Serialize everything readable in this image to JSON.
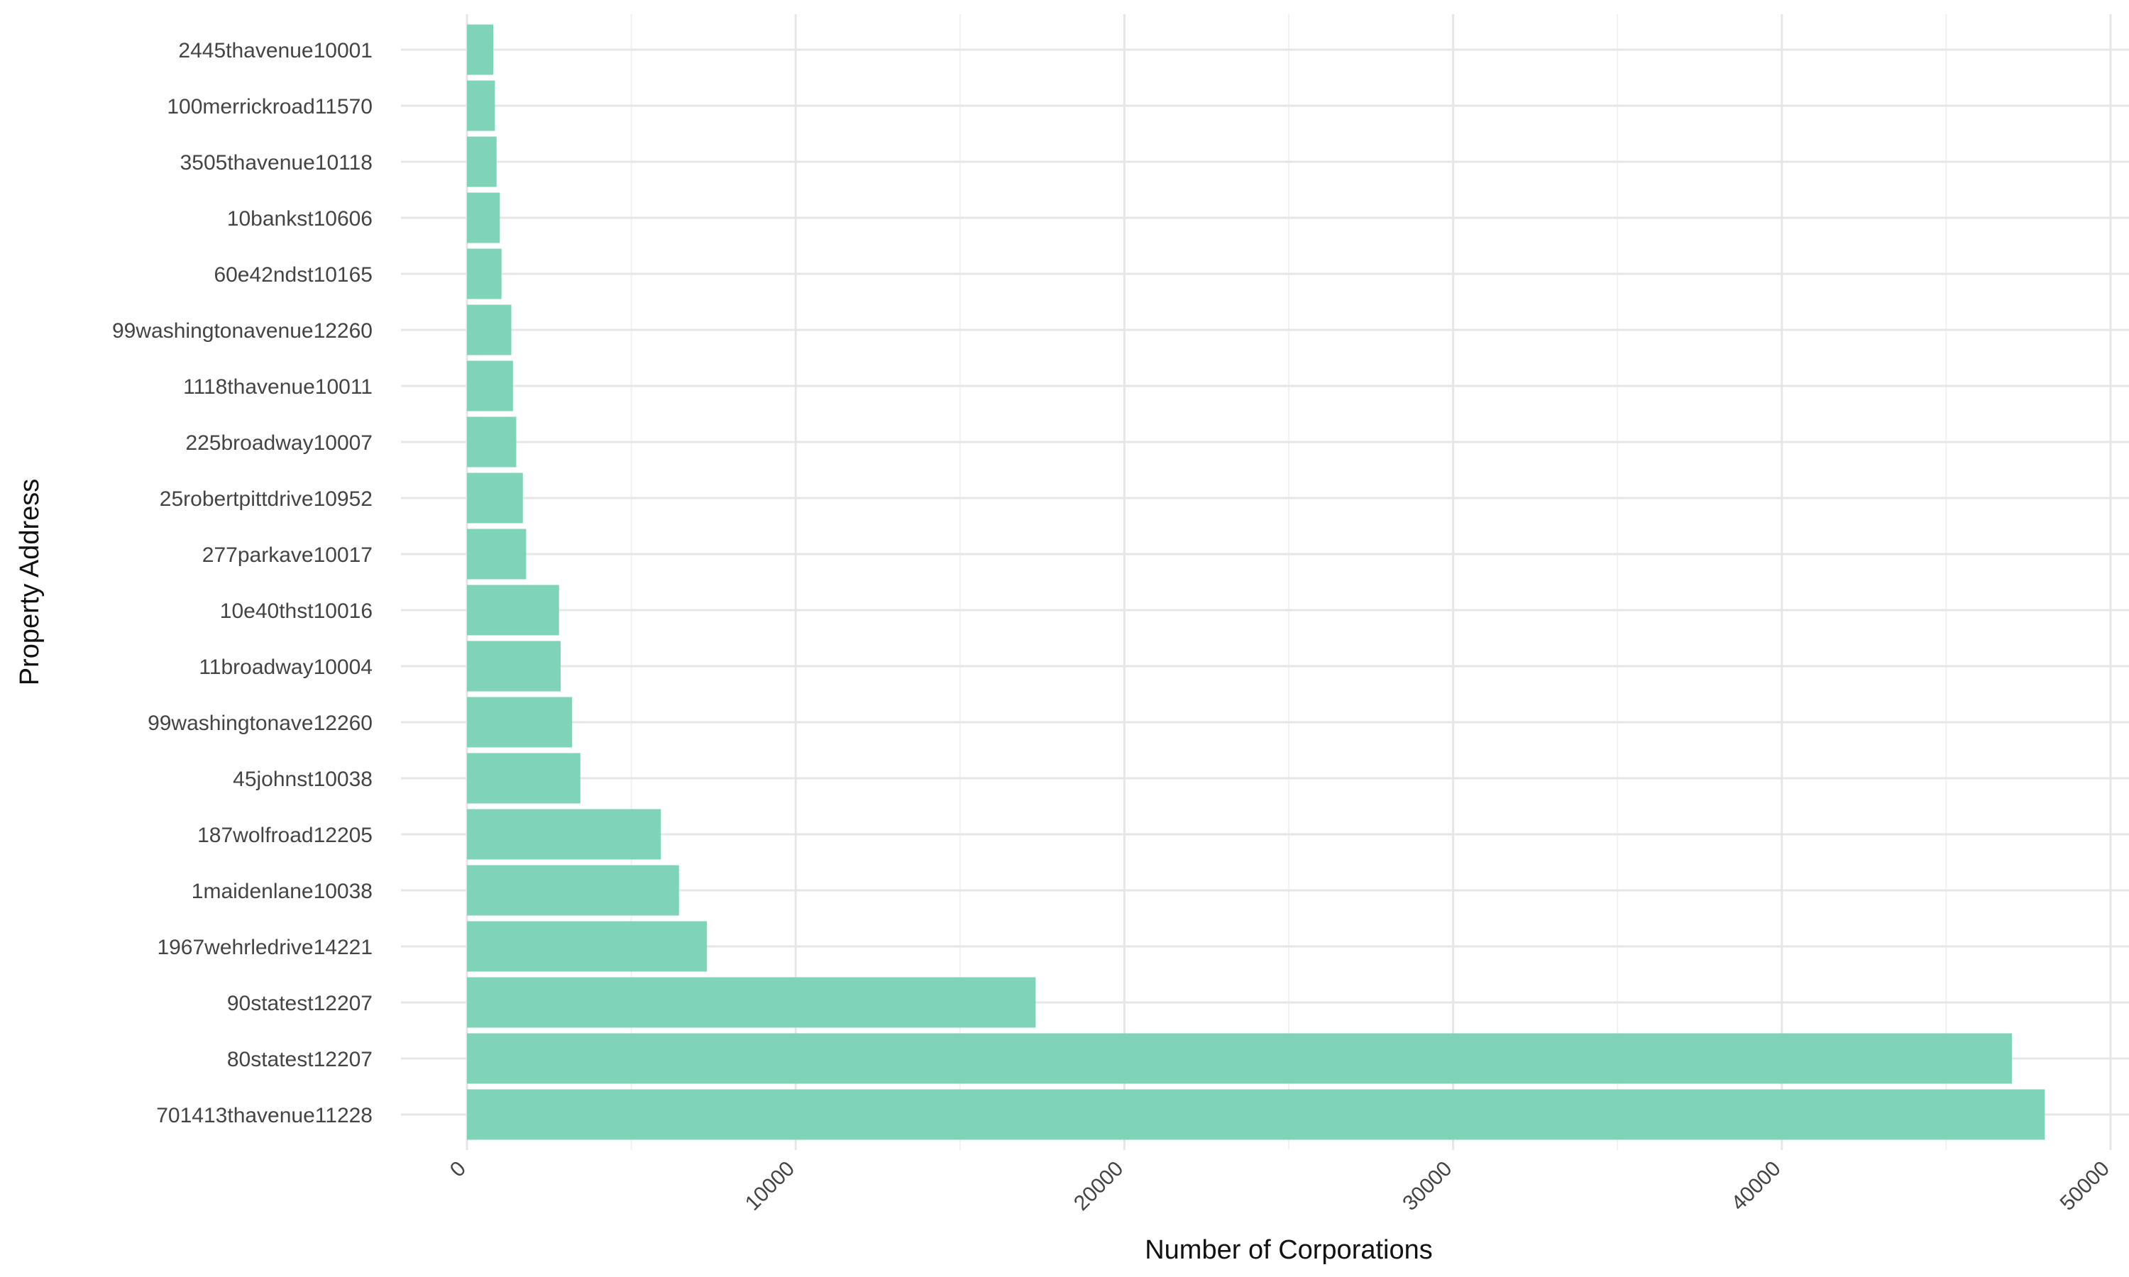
{
  "chart_data": {
    "type": "bar",
    "orientation": "horizontal",
    "title": "",
    "xlabel": "Number of Corporations",
    "ylabel": "Property Address",
    "xlim": [
      0,
      50000
    ],
    "x_ticks": [
      0,
      10000,
      20000,
      30000,
      40000,
      50000
    ],
    "x_tick_labels": [
      "0",
      "10000",
      "20000",
      "30000",
      "40000",
      "50000"
    ],
    "grid": true,
    "bar_color": "#7fd3b9",
    "categories": [
      "2445thavenue10001",
      "100merrickroad11570",
      "3505thavenue10118",
      "10bankst10606",
      "60e42ndst10165",
      "99washingtonavenue12260",
      "1118thavenue10011",
      "225broadway10007",
      "25robertpittdrive10952",
      "277parkave10017",
      "10e40thst10016",
      "11broadway10004",
      "99washingtonave12260",
      "45johnst10038",
      "187wolfroad12205",
      "1maidenlane10038",
      "1967wehrledrive14221",
      "90statest12207",
      "80statest12207",
      "701413thavenue11228"
    ],
    "values": [
      800,
      850,
      900,
      1000,
      1050,
      1350,
      1400,
      1500,
      1700,
      1800,
      2800,
      2850,
      3200,
      3450,
      5900,
      6450,
      7300,
      17300,
      47000,
      48000
    ]
  }
}
